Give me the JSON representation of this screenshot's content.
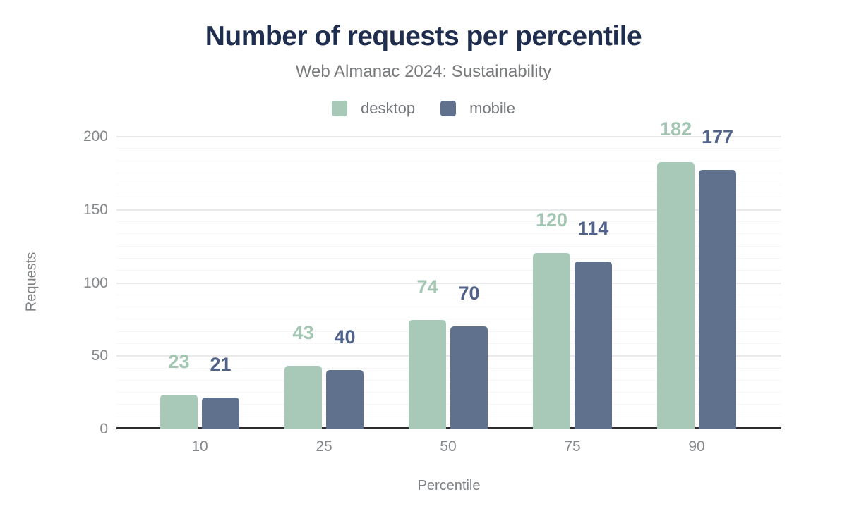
{
  "chart_data": {
    "type": "bar",
    "title": "Number of requests per percentile",
    "subtitle": "Web Almanac 2024: Sustainability",
    "categories": [
      "10",
      "25",
      "50",
      "75",
      "90"
    ],
    "series": [
      {
        "name": "desktop",
        "values": [
          23,
          43,
          74,
          120,
          182
        ],
        "bar_color": "#a9c9b8",
        "label_color": "#a3c6b3"
      },
      {
        "name": "mobile",
        "values": [
          21,
          40,
          70,
          114,
          177
        ],
        "bar_color": "#5f718c",
        "label_color": "#51628a"
      }
    ],
    "xlabel": "Percentile",
    "ylabel": "Requests",
    "ylim": [
      0,
      200
    ],
    "yticks": [
      0,
      50,
      100,
      150,
      200
    ],
    "grid": "horizontal only; light major gridlines at labeled ticks, fainter minor gridlines (5 between each major pair)",
    "minor_divisions_per_major": 6,
    "legend_position": "top center",
    "data_labels": "values shown above each bar in series color"
  },
  "colors": {
    "background": "#ffffff",
    "title": "#1f2e4e",
    "subtitle": "#77797b",
    "legend_text": "#74777b",
    "tick_text": "#85888b",
    "axis_title_text": "#7f8285",
    "axis_line": "#2d2d2d",
    "gridline_major": "#e9e9e9",
    "gridline_minor": "#f6f6f6"
  }
}
